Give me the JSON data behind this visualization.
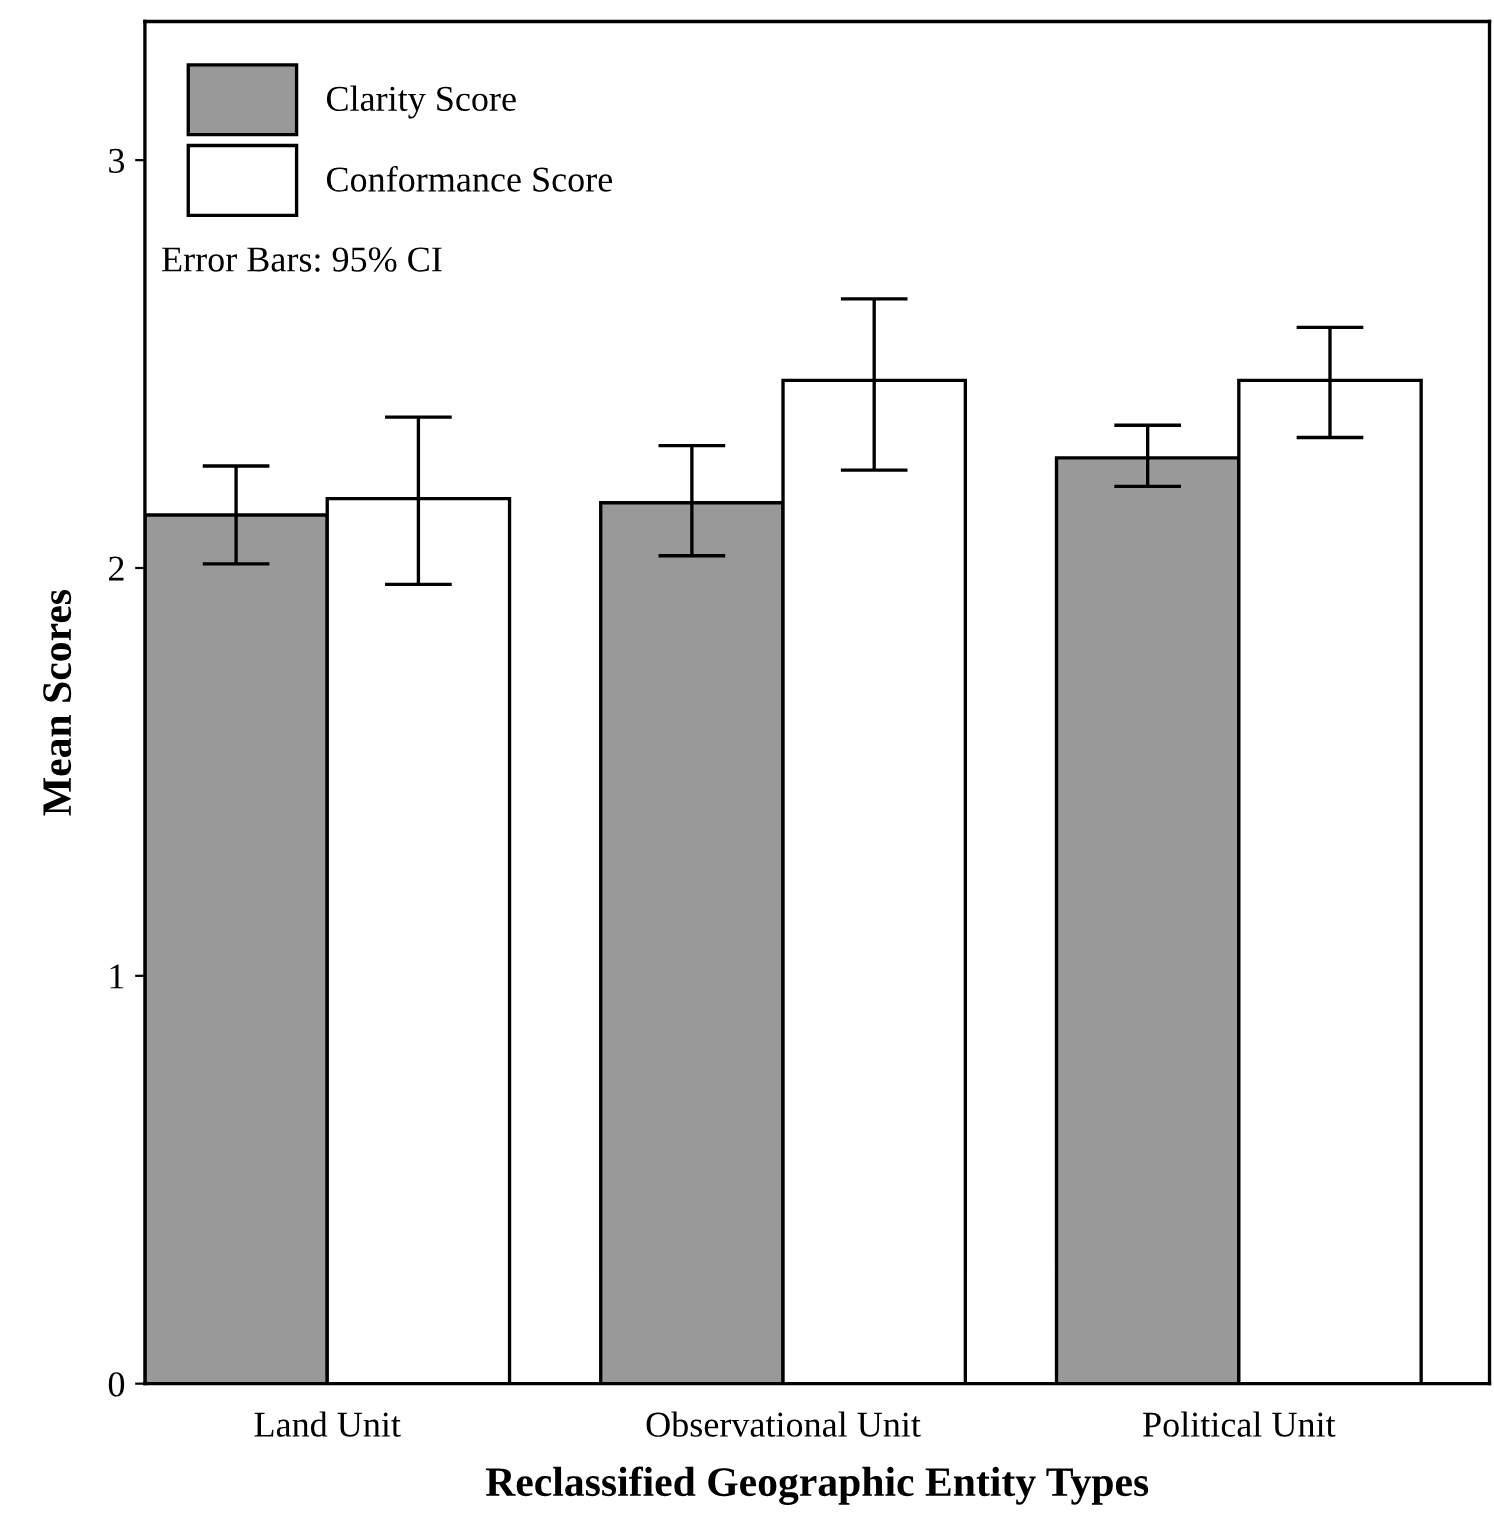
{
  "chart_data": {
    "type": "bar",
    "xlabel": "Reclassified Geographic Entity Types",
    "ylabel": "Mean Scores",
    "categories": [
      "Land Unit",
      "Observational Unit",
      "Political Unit"
    ],
    "series": [
      {
        "name": "Clarity Score",
        "color": "#999999",
        "values": [
          2.13,
          2.16,
          2.27
        ],
        "errors": [
          [
            2.01,
            2.25
          ],
          [
            2.03,
            2.3
          ],
          [
            2.2,
            2.35
          ]
        ]
      },
      {
        "name": "Conformance Score",
        "color": "#ffffff",
        "values": [
          2.17,
          2.46,
          2.46
        ],
        "errors": [
          [
            1.96,
            2.37
          ],
          [
            2.24,
            2.66
          ],
          [
            2.32,
            2.59
          ]
        ]
      }
    ],
    "ylim": [
      0,
      3.34
    ],
    "yticks": [
      0,
      1,
      2,
      3
    ],
    "legend": "top left",
    "grid": false,
    "annotations": [
      "Error Bars: 95% CI"
    ]
  }
}
